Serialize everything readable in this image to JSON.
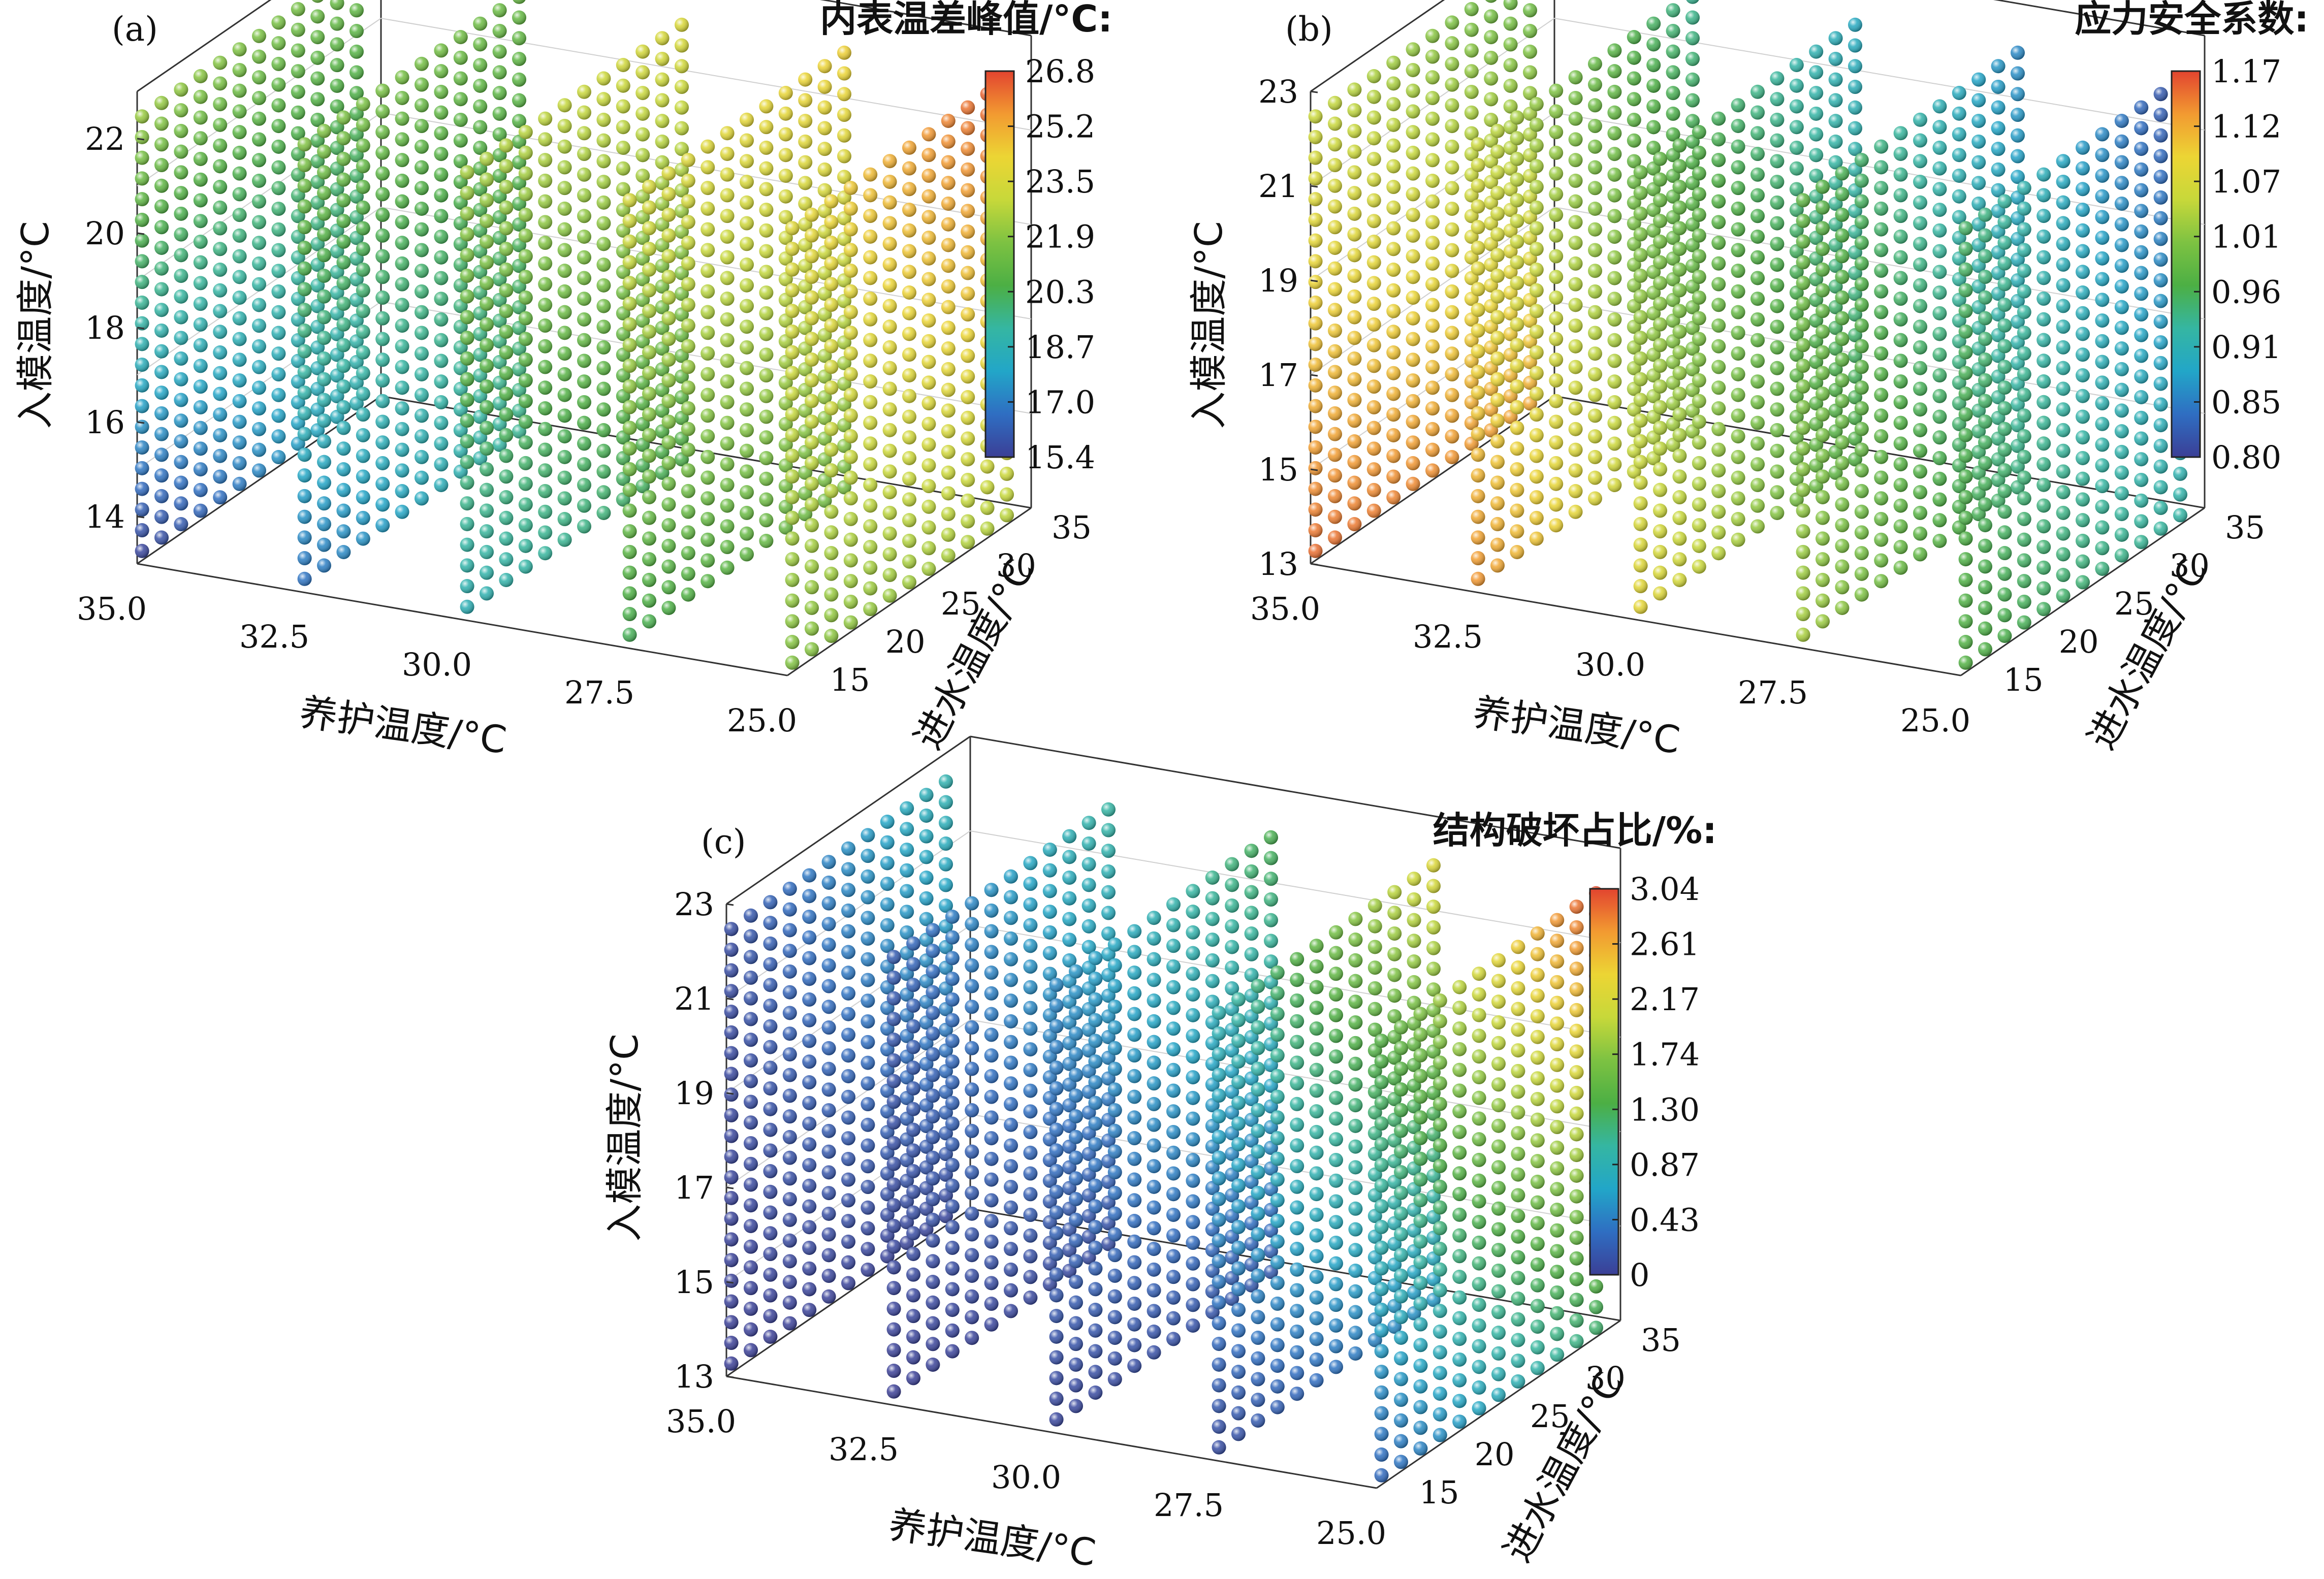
{
  "figure": {
    "colormap": [
      "#3b3f96",
      "#2f6ec2",
      "#22a6c8",
      "#35b6a2",
      "#4caf44",
      "#7dc242",
      "#c7d83a",
      "#ecd534",
      "#f29a31",
      "#e2442f"
    ]
  },
  "chart_data": [
    {
      "type": "scatter",
      "panel_label": "(a)",
      "colorbar_title": "内表温差峰值/°C:",
      "colorbar_ticks": [
        "26.8",
        "25.2",
        "23.5",
        "21.9",
        "20.3",
        "18.7",
        "17.0",
        "15.4"
      ],
      "color_range": [
        15.4,
        26.8
      ],
      "xlabel": "养护温度/°C",
      "ylabel": "进水温度/°C",
      "zlabel": "入模温度/°C",
      "x_ticks": [
        "35.0",
        "32.5",
        "30.0",
        "27.5",
        "25.0"
      ],
      "y_ticks": [
        "15",
        "20",
        "25",
        "30",
        "35"
      ],
      "z_ticks": [
        "14",
        "16",
        "18",
        "20",
        "22"
      ],
      "x_values": [
        35.0,
        32.5,
        30.0,
        27.5,
        25.0
      ],
      "y_range": [
        13,
        35
      ],
      "z_range": [
        13,
        23
      ],
      "planes": [
        {
          "x": 35.0,
          "low_high": [
            15.6,
            22.2
          ],
          "high_high": [
            18.6,
            21.2
          ]
        },
        {
          "x": 32.5,
          "low_high": [
            16.8,
            21.8
          ],
          "high_high": [
            19.4,
            21.2
          ]
        },
        {
          "x": 30.0,
          "low_high": [
            18.6,
            22.4
          ],
          "high_high": [
            20.4,
            23.6
          ]
        },
        {
          "x": 27.5,
          "low_high": [
            20.2,
            23.4
          ],
          "high_high": [
            21.6,
            24.4
          ]
        },
        {
          "x": 25.0,
          "low_high": [
            21.8,
            23.8
          ],
          "high_high": [
            22.8,
            26.6
          ]
        }
      ]
    },
    {
      "type": "scatter",
      "panel_label": "(b)",
      "colorbar_title": "应力安全系数:",
      "colorbar_ticks": [
        "1.17",
        "1.12",
        "1.07",
        "1.01",
        "0.96",
        "0.91",
        "0.85",
        "0.80"
      ],
      "color_range": [
        0.8,
        1.17
      ],
      "xlabel": "养护温度/°C",
      "ylabel": "进水温度/°C",
      "zlabel": "入模温度/°C",
      "x_ticks": [
        "35.0",
        "32.5",
        "30.0",
        "27.5",
        "25.0"
      ],
      "y_ticks": [
        "15",
        "20",
        "25",
        "30",
        "35"
      ],
      "z_ticks": [
        "13",
        "15",
        "17",
        "19",
        "21",
        "23"
      ],
      "x_values": [
        35.0,
        32.5,
        30.0,
        27.5,
        25.0
      ],
      "y_range": [
        13,
        35
      ],
      "z_range": [
        13,
        23
      ],
      "planes": [
        {
          "x": 35.0,
          "low_high": [
            1.15,
            1.05
          ],
          "high_high": [
            1.12,
            0.98
          ]
        },
        {
          "x": 32.5,
          "low_high": [
            1.13,
            1.05
          ],
          "high_high": [
            1.02,
            0.93
          ]
        },
        {
          "x": 30.0,
          "low_high": [
            1.08,
            0.99
          ],
          "high_high": [
            0.97,
            0.89
          ]
        },
        {
          "x": 27.5,
          "low_high": [
            1.03,
            0.98
          ],
          "high_high": [
            0.94,
            0.86
          ]
        },
        {
          "x": 25.0,
          "low_high": [
            0.97,
            0.95
          ],
          "high_high": [
            0.92,
            0.81
          ]
        }
      ]
    },
    {
      "type": "scatter",
      "panel_label": "(c)",
      "colorbar_title": "结构破坏占比/%:",
      "colorbar_ticks": [
        "3.04",
        "2.61",
        "2.17",
        "1.74",
        "1.30",
        "0.87",
        "0.43",
        "0"
      ],
      "color_range": [
        0,
        3.04
      ],
      "xlabel": "养护温度/°C",
      "ylabel": "进水温度/°C",
      "zlabel": "入模温度/°C",
      "x_ticks": [
        "35.0",
        "32.5",
        "30.0",
        "27.5",
        "25.0"
      ],
      "y_ticks": [
        "15",
        "20",
        "25",
        "30",
        "35"
      ],
      "z_ticks": [
        "13",
        "15",
        "17",
        "19",
        "21",
        "23"
      ],
      "x_values": [
        35.0,
        32.5,
        30.0,
        27.5,
        25.0
      ],
      "y_range": [
        13,
        35
      ],
      "z_range": [
        13,
        23
      ],
      "planes": [
        {
          "x": 35.0,
          "low_high": [
            0.0,
            0.1
          ],
          "high_high": [
            0.05,
            0.9
          ]
        },
        {
          "x": 32.5,
          "low_high": [
            0.0,
            0.2
          ],
          "high_high": [
            0.1,
            1.0
          ]
        },
        {
          "x": 30.0,
          "low_high": [
            0.05,
            0.5
          ],
          "high_high": [
            0.2,
            1.3
          ]
        },
        {
          "x": 27.5,
          "low_high": [
            0.1,
            0.9
          ],
          "high_high": [
            0.6,
            2.2
          ]
        },
        {
          "x": 25.0,
          "low_high": [
            0.3,
            1.4
          ],
          "high_high": [
            1.2,
            3.0
          ]
        }
      ]
    }
  ]
}
